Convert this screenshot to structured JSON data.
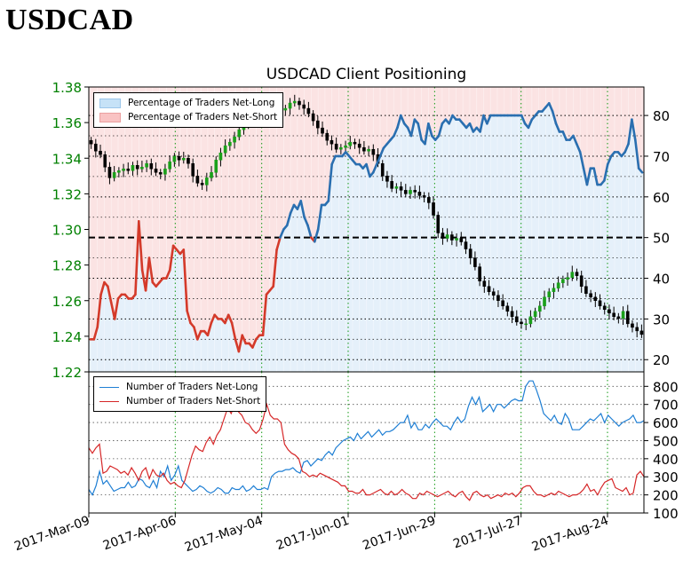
{
  "page_title": "USDCAD",
  "chart_data": [
    {
      "type": "candlestick+line",
      "title": "USDCAD Client Positioning",
      "left_axis": {
        "ylim": [
          1.22,
          1.38
        ],
        "ticks": [
          "1.22",
          "1.24",
          "1.26",
          "1.28",
          "1.30",
          "1.32",
          "1.34",
          "1.36",
          "1.38"
        ],
        "color": "#008000"
      },
      "right_axis": {
        "ylim": [
          17,
          87
        ],
        "ticks": [
          "20",
          "30",
          "40",
          "50",
          "60",
          "70",
          "80"
        ],
        "reference_line": 50
      },
      "legend": [
        {
          "label": "Percentage of Traders Net-Long",
          "color": "#c6e2f7"
        },
        {
          "label": "Percentage of Traders Net-Short",
          "color": "#f9c3c3"
        }
      ],
      "legend_position": "top-left",
      "price_close": [
        1.348,
        1.344,
        1.342,
        1.335,
        1.329,
        1.332,
        1.333,
        1.334,
        1.333,
        1.336,
        1.334,
        1.335,
        1.337,
        1.334,
        1.332,
        1.331,
        1.334,
        1.338,
        1.341,
        1.339,
        1.34,
        1.337,
        1.33,
        1.326,
        1.325,
        1.329,
        1.332,
        1.339,
        1.343,
        1.347,
        1.349,
        1.352,
        1.356,
        1.36,
        1.363,
        1.364,
        1.365,
        1.367,
        1.368,
        1.369,
        1.37,
        1.367,
        1.368,
        1.371,
        1.372,
        1.37,
        1.368,
        1.365,
        1.361,
        1.357,
        1.354,
        1.35,
        1.348,
        1.345,
        1.346,
        1.347,
        1.349,
        1.348,
        1.346,
        1.344,
        1.345,
        1.342,
        1.337,
        1.33,
        1.327,
        1.323,
        1.324,
        1.322,
        1.32,
        1.322,
        1.321,
        1.319,
        1.318,
        1.315,
        1.308,
        1.298,
        1.295,
        1.297,
        1.294,
        1.295,
        1.293,
        1.289,
        1.284,
        1.279,
        1.271,
        1.268,
        1.265,
        1.263,
        1.26,
        1.257,
        1.254,
        1.251,
        1.248,
        1.247,
        1.247,
        1.251,
        1.254,
        1.257,
        1.262,
        1.265,
        1.267,
        1.27,
        1.272,
        1.273,
        1.276,
        1.274,
        1.268,
        1.264,
        1.262,
        1.26,
        1.257,
        1.255,
        1.253,
        1.251,
        1.25,
        1.254,
        1.247,
        1.245,
        1.243,
        1.241
      ],
      "pct_long": [
        25,
        25,
        28,
        36,
        39,
        38,
        34,
        30,
        35,
        36,
        36,
        35,
        35,
        36,
        54,
        42,
        37,
        45,
        39,
        38,
        39,
        40,
        40,
        42,
        48,
        47,
        46,
        47,
        32,
        29,
        28,
        25,
        27,
        27,
        26,
        29,
        31,
        30,
        30,
        29,
        31,
        29,
        25,
        22,
        26,
        24,
        24,
        23,
        25,
        26,
        26,
        36,
        37,
        38,
        47,
        50,
        52,
        53,
        56,
        58,
        57,
        59,
        55,
        53,
        50,
        49,
        52,
        58,
        58,
        59,
        68,
        70,
        70,
        70,
        71,
        70,
        69,
        68,
        68,
        67,
        68,
        65,
        66,
        68,
        70,
        72,
        73,
        74,
        75,
        77,
        80,
        78,
        77,
        75,
        79,
        78,
        74,
        73,
        78,
        75,
        74,
        75,
        78,
        79,
        78,
        80,
        79,
        79,
        78,
        77,
        78,
        76,
        77,
        76,
        80,
        78,
        80,
        80,
        80,
        80,
        80,
        80,
        80,
        80,
        80,
        80,
        78,
        77,
        79,
        80,
        81,
        81,
        82,
        83,
        81,
        78,
        76,
        76,
        74,
        74,
        75,
        73,
        71,
        67,
        63,
        67,
        67,
        63,
        63,
        64,
        68,
        70,
        71,
        71,
        70,
        71,
        73,
        79,
        74,
        67,
        66
      ],
      "months_x": [
        "2017-Mar-09",
        "2017-Apr-06",
        "2017-May-04",
        "2017-Jun-01",
        "2017-Jun-29",
        "2017-Jul-27",
        "2017-Aug-24"
      ]
    },
    {
      "type": "line",
      "yticks": [
        "100",
        "200",
        "300",
        "400",
        "500",
        "600",
        "700",
        "800"
      ],
      "ylim": [
        100,
        880
      ],
      "legend_position": "top-left",
      "series": [
        {
          "name": "Number of Traders Net-Long",
          "color": "#1f7fd4",
          "values": [
            230,
            200,
            250,
            330,
            260,
            280,
            250,
            220,
            230,
            240,
            240,
            270,
            240,
            250,
            290,
            280,
            250,
            240,
            280,
            240,
            330,
            300,
            360,
            280,
            310,
            360,
            280,
            260,
            240,
            220,
            230,
            250,
            240,
            220,
            210,
            220,
            240,
            230,
            210,
            210,
            240,
            230,
            230,
            250,
            220,
            230,
            250,
            230,
            230,
            240,
            230,
            300,
            320,
            330,
            330,
            340,
            340,
            350,
            330,
            320,
            380,
            390,
            360,
            380,
            400,
            390,
            420,
            440,
            420,
            460,
            480,
            500,
            510,
            520,
            500,
            540,
            510,
            530,
            550,
            520,
            540,
            560,
            530,
            550,
            550,
            560,
            580,
            600,
            600,
            640,
            570,
            600,
            560,
            560,
            590,
            570,
            600,
            620,
            600,
            580,
            580,
            560,
            600,
            630,
            600,
            620,
            690,
            740,
            700,
            740,
            660,
            680,
            700,
            660,
            700,
            700,
            680,
            700,
            720,
            730,
            720,
            720,
            800,
            830,
            830,
            780,
            720,
            650,
            630,
            610,
            640,
            600,
            590,
            650,
            620,
            560,
            560,
            560,
            580,
            600,
            620,
            610,
            630,
            650,
            600,
            640,
            620,
            600,
            580,
            600,
            610,
            620,
            640,
            600,
            600,
            610
          ]
        },
        {
          "name": "Number of Traders Net-Short",
          "color": "#d62728",
          "values": [
            460,
            430,
            460,
            480,
            320,
            330,
            360,
            350,
            340,
            320,
            330,
            310,
            350,
            320,
            280,
            330,
            350,
            290,
            340,
            310,
            300,
            320,
            280,
            260,
            270,
            250,
            240,
            280,
            350,
            420,
            470,
            450,
            440,
            490,
            520,
            480,
            530,
            560,
            620,
            680,
            650,
            700,
            660,
            640,
            600,
            590,
            560,
            540,
            560,
            620,
            700,
            640,
            620,
            620,
            600,
            480,
            450,
            430,
            420,
            400,
            330,
            320,
            300,
            310,
            300,
            320,
            310,
            300,
            290,
            280,
            270,
            250,
            250,
            220,
            220,
            210,
            210,
            230,
            200,
            200,
            210,
            220,
            230,
            210,
            200,
            220,
            200,
            210,
            230,
            210,
            200,
            180,
            180,
            210,
            200,
            220,
            210,
            200,
            190,
            200,
            210,
            220,
            200,
            190,
            210,
            220,
            190,
            170,
            210,
            220,
            200,
            190,
            200,
            180,
            190,
            200,
            190,
            210,
            200,
            210,
            190,
            210,
            240,
            250,
            250,
            220,
            200,
            200,
            190,
            200,
            210,
            200,
            220,
            210,
            200,
            190,
            200,
            200,
            210,
            230,
            260,
            220,
            230,
            200,
            240,
            270,
            280,
            290,
            240,
            230,
            220,
            240,
            200,
            210,
            310,
            330,
            300
          ]
        }
      ],
      "months_x": [
        "2017-Mar-09",
        "2017-Apr-06",
        "2017-May-04",
        "2017-Jun-01",
        "2017-Jun-29",
        "2017-Jul-27",
        "2017-Aug-24"
      ]
    }
  ]
}
